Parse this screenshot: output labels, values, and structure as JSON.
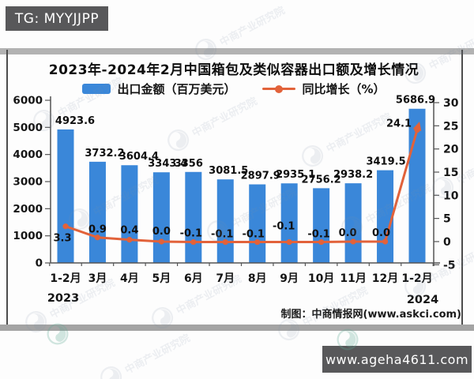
{
  "page": {
    "top_left_tag": "TG: MYYJJPP",
    "bottom_right_tag": "www.ageha4611.com",
    "watermark_text": "中商产业研究院",
    "colors": {
      "bar": "#3a87d9",
      "line": "#e2623a",
      "tag_background": "#58585a"
    }
  },
  "chart_data": {
    "type": "bar",
    "combo": "bar+line",
    "title": "2023年-2024年2月中国箱包及类似容器出口额及增长情况",
    "categories": [
      "1-2月",
      "3月",
      "4月",
      "5月",
      "6月",
      "7月",
      "8月",
      "9月",
      "10月",
      "11月",
      "12月",
      "1-2月"
    ],
    "year_labels": {
      "start": "2023",
      "end": "2024"
    },
    "series": [
      {
        "name": "出口金额（百万美元）",
        "type": "bar",
        "axis": "left",
        "color": "#3a87d9",
        "values": [
          4923.6,
          3732.2,
          3604.4,
          3343.4,
          3356,
          3081.5,
          2897.9,
          2935.1,
          2756.2,
          2938.2,
          3419.5,
          5686.9
        ],
        "labels": [
          "4923.6",
          "3732.2",
          "3604.4",
          "3343.4",
          "3356",
          "3081.5",
          "2897.9",
          "2935.1",
          "2756.2",
          "2938.2",
          "3419.5",
          "5686.9"
        ]
      },
      {
        "name": "同比增长（%）",
        "type": "line",
        "axis": "right",
        "color": "#e2623a",
        "values": [
          3.3,
          0.9,
          0.4,
          0.0,
          -0.1,
          -0.1,
          -0.1,
          -0.1,
          -0.1,
          0.0,
          0.0,
          24.1
        ],
        "labels": [
          "3.3",
          "0.9",
          "0.4",
          "0.0",
          "-0.1",
          "-0.1",
          "-0.1",
          "-0.1",
          "-0.1",
          "0.0",
          "0.0",
          "24.1"
        ]
      }
    ],
    "left_axis": {
      "min": 0,
      "max": 6000,
      "ticks": [
        0,
        1000,
        2000,
        3000,
        4000,
        5000,
        6000
      ]
    },
    "right_axis": {
      "min": -5,
      "max": 30,
      "ticks": [
        -5,
        0,
        5,
        10,
        15,
        20,
        25,
        30
      ]
    },
    "legend_position": "top",
    "grid": false,
    "caption": "制图：中商情报网(www.askci.com)"
  }
}
